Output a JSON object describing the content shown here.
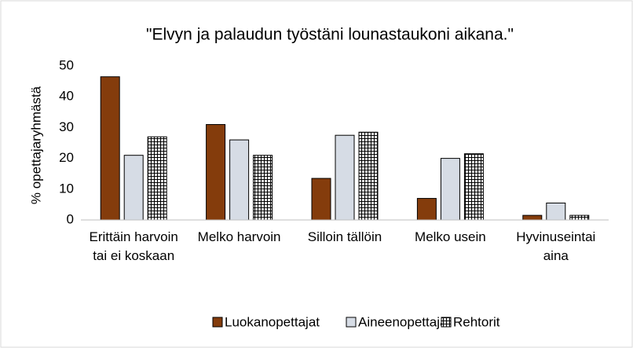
{
  "chart_data": {
    "type": "bar",
    "title": "\"Elvyn ja palaudun työstäni lounastaukoni aikana.\"",
    "ylabel": "% opettajaryhmästä",
    "categories": [
      "Erittäin harvoin tai ei koskaan",
      "Melko harvoin",
      "Silloin tällöin",
      "Melko usein",
      "Hyvinuseintai aina"
    ],
    "series": [
      {
        "name": "Luokanopettajat",
        "color": "#843c0c",
        "values": [
          46.5,
          31,
          13.5,
          7,
          1.5
        ]
      },
      {
        "name": "Aineenopettajat",
        "color": "#d6dce5",
        "values": [
          21,
          26,
          27.5,
          20,
          5.5
        ]
      },
      {
        "name": "Rehtorit",
        "color": "#ffffff",
        "hatch": "grid",
        "values": [
          27,
          21,
          28.5,
          21.5,
          1.5
        ]
      }
    ],
    "ylim": [
      0,
      50
    ],
    "yticks": [
      0,
      10,
      20,
      30,
      40,
      50
    ],
    "grid": false,
    "legend": "bottom"
  }
}
